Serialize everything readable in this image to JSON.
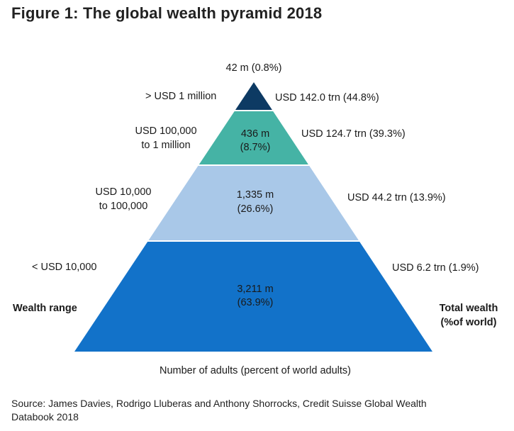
{
  "title": "Figure 1: The global wealth pyramid 2018",
  "top_label": "42 m (0.8%)",
  "left_axis_label": "Wealth range",
  "right_axis_label_1": "Total wealth",
  "right_axis_label_2": "(%of world)",
  "bottom_label": "Number of adults (percent of world adults)",
  "source_line_1": "Source: James Davies, Rodrigo Lluberas and Anthony Shorrocks, Credit Suisse Global Wealth",
  "source_line_2": "Databook 2018",
  "chart_data": {
    "type": "pyramid",
    "title": "Figure 1: The global wealth pyramid 2018",
    "xlabel": "Number of adults (percent of world adults)",
    "left_label": "Wealth range",
    "right_label": "Total wealth (%of world)",
    "tiers": [
      {
        "range_line1": "> USD 1 million",
        "range_line2": "",
        "adults_line1": "42 m (0.8%)",
        "adults_line2": "",
        "adults_m": 42,
        "adults_pct": 0.8,
        "wealth": "USD 142.0 trn (44.8%)",
        "wealth_trn": 142.0,
        "wealth_pct": 44.8,
        "color": "#0d3a63"
      },
      {
        "range_line1": "USD 100,000",
        "range_line2": "to 1 million",
        "adults_line1": "436 m",
        "adults_line2": "(8.7%)",
        "adults_m": 436,
        "adults_pct": 8.7,
        "wealth": "USD 124.7 trn (39.3%)",
        "wealth_trn": 124.7,
        "wealth_pct": 39.3,
        "color": "#45b3a5"
      },
      {
        "range_line1": "USD 10,000",
        "range_line2": "to 100,000",
        "adults_line1": "1,335 m",
        "adults_line2": "(26.6%)",
        "adults_m": 1335,
        "adults_pct": 26.6,
        "wealth": "USD 44.2 trn (13.9%)",
        "wealth_trn": 44.2,
        "wealth_pct": 13.9,
        "color": "#a9c8e8"
      },
      {
        "range_line1": "< USD 10,000",
        "range_line2": "",
        "adults_line1": "3,211 m",
        "adults_line2": "(63.9%)",
        "adults_m": 3211,
        "adults_pct": 63.9,
        "wealth": "USD 6.2 trn (1.9%)",
        "wealth_trn": 6.2,
        "wealth_pct": 1.9,
        "color": "#1272c9"
      }
    ]
  }
}
